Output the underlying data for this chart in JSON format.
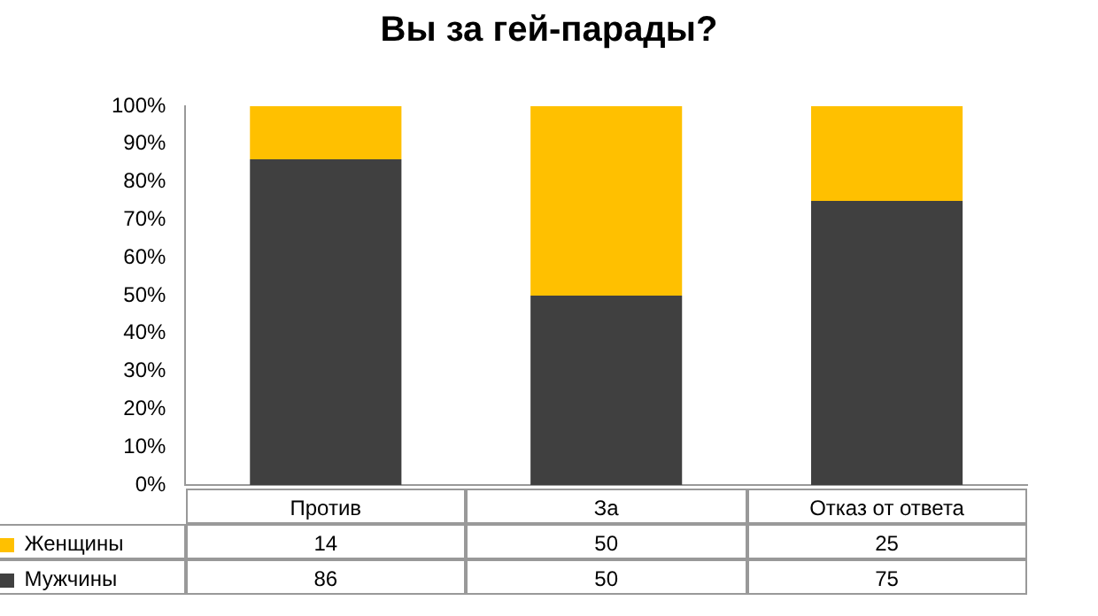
{
  "chart_data": {
    "type": "bar",
    "title": "Вы за гей-парады?",
    "stacked": true,
    "categories": [
      "Против",
      "За",
      "Отказ от ответа"
    ],
    "series": [
      {
        "name": "Мужчины",
        "color": "#404040",
        "values": [
          86,
          50,
          75
        ]
      },
      {
        "name": "Женщины",
        "color": "#ffc000",
        "values": [
          14,
          50,
          25
        ]
      }
    ],
    "ylim": [
      0,
      100
    ],
    "yticks": [
      {
        "value": 0,
        "label": "0%"
      },
      {
        "value": 10,
        "label": "10%"
      },
      {
        "value": 20,
        "label": "20%"
      },
      {
        "value": 30,
        "label": "30%"
      },
      {
        "value": 40,
        "label": "40%"
      },
      {
        "value": 50,
        "label": "50%"
      },
      {
        "value": 60,
        "label": "60%"
      },
      {
        "value": 70,
        "label": "70%"
      },
      {
        "value": 80,
        "label": "80%"
      },
      {
        "value": 90,
        "label": "90%"
      },
      {
        "value": 100,
        "label": "100%"
      }
    ],
    "grid": false,
    "legend": "bottom left",
    "data_labels": true
  }
}
